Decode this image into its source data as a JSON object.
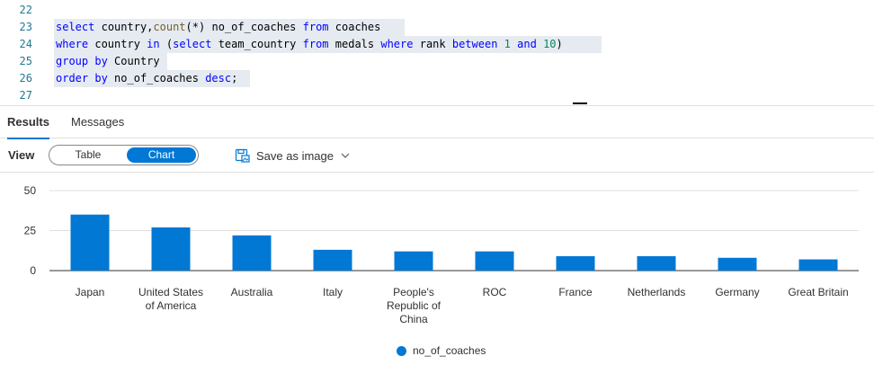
{
  "editor": {
    "lines": [
      {
        "num": "22",
        "text": ""
      },
      {
        "num": "23",
        "text": "select country,count(*) no_of_coaches from coaches"
      },
      {
        "num": "24",
        "text": "where country in (select team_country from medals where rank between 1 and 10)"
      },
      {
        "num": "25",
        "text": "group by Country"
      },
      {
        "num": "26",
        "text": "order by no_of_coaches desc;"
      },
      {
        "num": "27",
        "text": ""
      }
    ]
  },
  "tabs": [
    {
      "label": "Results",
      "active": true
    },
    {
      "label": "Messages",
      "active": false
    }
  ],
  "toolbar": {
    "view_label": "View",
    "toggle": {
      "table_label": "Table",
      "chart_label": "Chart",
      "selected": "Chart"
    },
    "save_label": "Save as image",
    "save_icon": "save-image-icon",
    "dropdown_icon": "chevron-down-icon"
  },
  "chart_data": {
    "type": "bar",
    "categories": [
      "Japan",
      "United States of America",
      "Australia",
      "Italy",
      "People's Republic of China",
      "ROC",
      "France",
      "Netherlands",
      "Germany",
      "Great Britain"
    ],
    "category_lines": [
      [
        "Japan"
      ],
      [
        "United States",
        "of America"
      ],
      [
        "Australia"
      ],
      [
        "Italy"
      ],
      [
        "People's",
        "Republic of",
        "China"
      ],
      [
        "ROC"
      ],
      [
        "France"
      ],
      [
        "Netherlands"
      ],
      [
        "Germany"
      ],
      [
        "Great Britain"
      ]
    ],
    "series": [
      {
        "name": "no_of_coaches",
        "values": [
          35,
          27,
          22,
          13,
          12,
          12,
          9,
          9,
          8,
          7
        ],
        "color": "#0078d4"
      }
    ],
    "yticks": [
      0,
      25,
      50
    ],
    "ylim": [
      0,
      50
    ],
    "grid": true,
    "legend_position": "bottom",
    "title": "",
    "xlabel": "",
    "ylabel": ""
  }
}
